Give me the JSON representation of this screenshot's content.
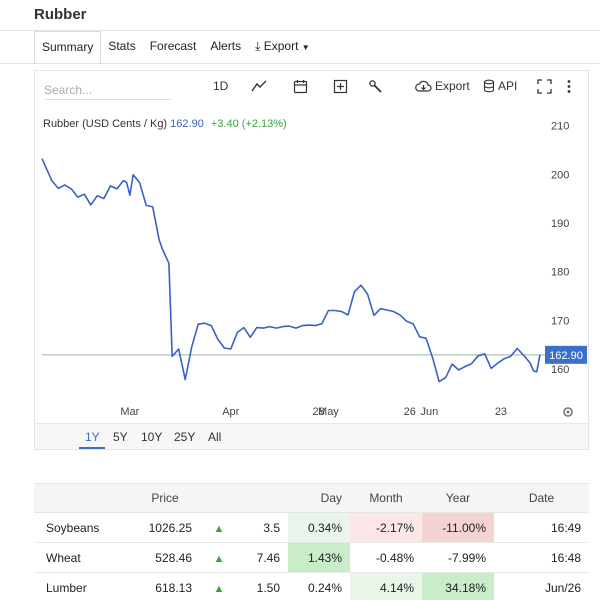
{
  "page": {
    "title": "Rubber"
  },
  "tabs": [
    {
      "label": "Summary",
      "active": true
    },
    {
      "label": "Stats"
    },
    {
      "label": "Forecast"
    },
    {
      "label": "Alerts"
    },
    {
      "label": "Export"
    }
  ],
  "toolbar": {
    "search_placeholder": "Search...",
    "interval_label": "1D",
    "export_label": "Export",
    "api_label": "API"
  },
  "legend": {
    "symbol": "Rubber (USD Cents / Kg)",
    "price": "162.90",
    "change": "+3.40 (+2.13%)"
  },
  "periods": [
    {
      "label": "1Y",
      "active": true
    },
    {
      "label": "5Y"
    },
    {
      "label": "10Y"
    },
    {
      "label": "25Y"
    },
    {
      "label": "All"
    }
  ],
  "colors": {
    "line": "#3b5fcc",
    "price_tag": "#3b6fcc",
    "positive": "#3aa63a"
  },
  "chart_data": {
    "type": "line",
    "title": "Rubber (USD Cents / Kg)",
    "last_value": 162.9,
    "last_value_label": "162.90",
    "ylim": [
      153,
      213
    ],
    "y_ticks": [
      160,
      170,
      180,
      190,
      200,
      210
    ],
    "y_tick_labels": [
      "160",
      "170",
      "180",
      "190",
      "200",
      "210"
    ],
    "x_range": [
      "2025-02-02",
      "2025-07-05"
    ],
    "x_ticks": [
      {
        "label": "Mar",
        "date": "2025-03-01"
      },
      {
        "label": "Apr",
        "date": "2025-04-01"
      },
      {
        "label": "28",
        "date": "2025-04-28"
      },
      {
        "label": "May",
        "date": "2025-05-01"
      },
      {
        "label": "26",
        "date": "2025-05-26"
      },
      {
        "label": "Jun",
        "date": "2025-06-01"
      },
      {
        "label": "23",
        "date": "2025-06-23"
      }
    ],
    "grid": false,
    "series": [
      {
        "values": [
          {
            "x": "2025-02-02",
            "y": 203.2
          },
          {
            "x": "2025-02-05",
            "y": 198.7
          },
          {
            "x": "2025-02-07",
            "y": 197.1
          },
          {
            "x": "2025-02-09",
            "y": 197.8
          },
          {
            "x": "2025-02-11",
            "y": 197.0
          },
          {
            "x": "2025-02-13",
            "y": 195.3
          },
          {
            "x": "2025-02-15",
            "y": 195.9
          },
          {
            "x": "2025-02-17",
            "y": 193.7
          },
          {
            "x": "2025-02-19",
            "y": 195.6
          },
          {
            "x": "2025-02-21",
            "y": 195.0
          },
          {
            "x": "2025-02-23",
            "y": 197.6
          },
          {
            "x": "2025-02-25",
            "y": 197.0
          },
          {
            "x": "2025-02-27",
            "y": 198.7
          },
          {
            "x": "2025-02-28",
            "y": 198.3
          },
          {
            "x": "2025-03-01",
            "y": 195.7
          },
          {
            "x": "2025-03-02",
            "y": 199.9
          },
          {
            "x": "2025-03-04",
            "y": 198.3
          },
          {
            "x": "2025-03-06",
            "y": 193.6
          },
          {
            "x": "2025-03-08",
            "y": 193.3
          },
          {
            "x": "2025-03-10",
            "y": 186.5
          },
          {
            "x": "2025-03-11",
            "y": 184.6
          },
          {
            "x": "2025-03-13",
            "y": 181.7
          },
          {
            "x": "2025-03-14",
            "y": 162.6
          },
          {
            "x": "2025-03-16",
            "y": 164.1
          },
          {
            "x": "2025-03-18",
            "y": 157.8
          },
          {
            "x": "2025-03-20",
            "y": 164.5
          },
          {
            "x": "2025-03-22",
            "y": 169.2
          },
          {
            "x": "2025-03-24",
            "y": 169.4
          },
          {
            "x": "2025-03-26",
            "y": 168.9
          },
          {
            "x": "2025-03-28",
            "y": 166.1
          },
          {
            "x": "2025-03-30",
            "y": 164.3
          },
          {
            "x": "2025-04-01",
            "y": 164.1
          },
          {
            "x": "2025-04-03",
            "y": 167.5
          },
          {
            "x": "2025-04-05",
            "y": 168.5
          },
          {
            "x": "2025-04-07",
            "y": 166.5
          },
          {
            "x": "2025-04-09",
            "y": 168.5
          },
          {
            "x": "2025-04-11",
            "y": 168.4
          },
          {
            "x": "2025-04-13",
            "y": 168.7
          },
          {
            "x": "2025-04-15",
            "y": 168.4
          },
          {
            "x": "2025-04-17",
            "y": 168.7
          },
          {
            "x": "2025-04-19",
            "y": 168.8
          },
          {
            "x": "2025-04-21",
            "y": 168.4
          },
          {
            "x": "2025-04-23",
            "y": 168.9
          },
          {
            "x": "2025-04-25",
            "y": 169.0
          },
          {
            "x": "2025-04-27",
            "y": 168.9
          },
          {
            "x": "2025-04-29",
            "y": 169.3
          },
          {
            "x": "2025-05-01",
            "y": 172.0
          },
          {
            "x": "2025-05-03",
            "y": 172.0
          },
          {
            "x": "2025-05-05",
            "y": 171.8
          },
          {
            "x": "2025-05-07",
            "y": 171.1
          },
          {
            "x": "2025-05-09",
            "y": 175.9
          },
          {
            "x": "2025-05-11",
            "y": 177.2
          },
          {
            "x": "2025-05-13",
            "y": 175.4
          },
          {
            "x": "2025-05-15",
            "y": 171.0
          },
          {
            "x": "2025-05-17",
            "y": 172.4
          },
          {
            "x": "2025-05-19",
            "y": 172.1
          },
          {
            "x": "2025-05-21",
            "y": 171.8
          },
          {
            "x": "2025-05-23",
            "y": 171.1
          },
          {
            "x": "2025-05-25",
            "y": 169.8
          },
          {
            "x": "2025-05-27",
            "y": 169.3
          },
          {
            "x": "2025-05-29",
            "y": 166.6
          },
          {
            "x": "2025-05-31",
            "y": 166.3
          },
          {
            "x": "2025-06-02",
            "y": 162.3
          },
          {
            "x": "2025-06-04",
            "y": 157.4
          },
          {
            "x": "2025-06-06",
            "y": 158.2
          },
          {
            "x": "2025-06-08",
            "y": 161.0
          },
          {
            "x": "2025-06-10",
            "y": 159.8
          },
          {
            "x": "2025-06-12",
            "y": 160.5
          },
          {
            "x": "2025-06-14",
            "y": 161.1
          },
          {
            "x": "2025-06-16",
            "y": 162.7
          },
          {
            "x": "2025-06-18",
            "y": 163.1
          },
          {
            "x": "2025-06-20",
            "y": 160.1
          },
          {
            "x": "2025-06-22",
            "y": 161.2
          },
          {
            "x": "2025-06-24",
            "y": 162.1
          },
          {
            "x": "2025-06-26",
            "y": 162.6
          },
          {
            "x": "2025-06-28",
            "y": 164.2
          },
          {
            "x": "2025-06-30",
            "y": 162.8
          },
          {
            "x": "2025-07-02",
            "y": 161.2
          },
          {
            "x": "2025-07-03",
            "y": 159.6
          },
          {
            "x": "2025-07-04",
            "y": 159.4
          },
          {
            "x": "2025-07-05",
            "y": 162.9
          }
        ]
      }
    ]
  },
  "markets_table": {
    "headers": [
      "",
      "Price",
      "",
      "",
      "Day",
      "Month",
      "Year",
      "Date"
    ],
    "rows": [
      {
        "name": "Soybeans",
        "price": "1026.25",
        "change": "3.5",
        "day": "0.34%",
        "month": "-2.17%",
        "year": "-11.00%",
        "date": "16:49"
      },
      {
        "name": "Wheat",
        "price": "528.46",
        "change": "7.46",
        "day": "1.43%",
        "month": "-0.48%",
        "year": "-7.99%",
        "date": "16:48"
      },
      {
        "name": "Lumber",
        "price": "618.13",
        "change": "1.50",
        "day": "0.24%",
        "month": "4.14%",
        "year": "34.18%",
        "date": "Jun/26"
      }
    ],
    "up_symbol": "▲"
  }
}
